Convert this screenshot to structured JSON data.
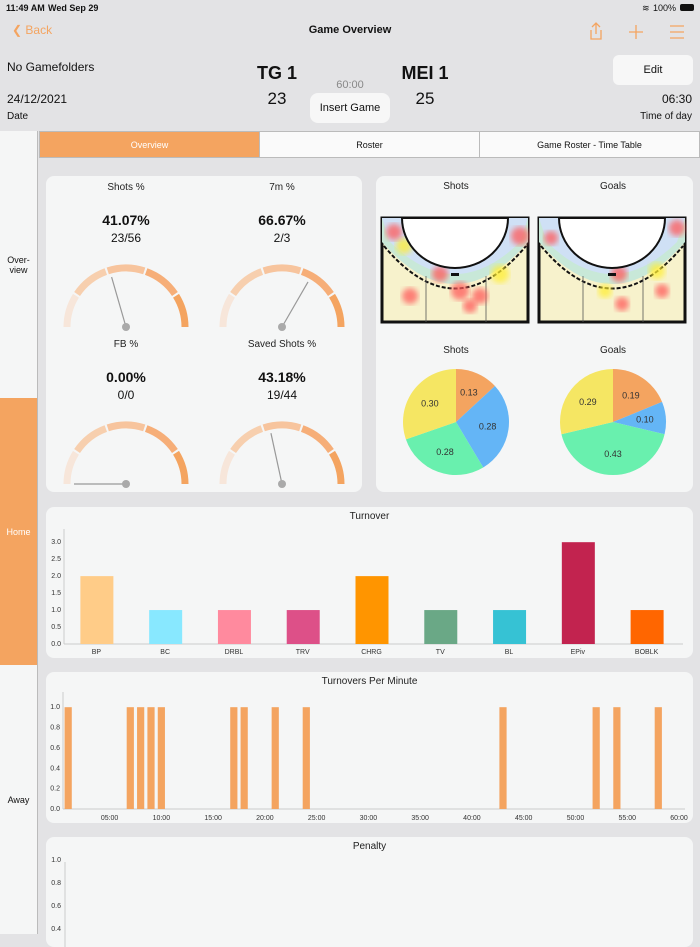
{
  "status": {
    "time": "11:49 AM",
    "date": "Wed Sep 29",
    "battery": "100%"
  },
  "nav": {
    "back": "Back",
    "title": "Game Overview",
    "icons": [
      "share-icon",
      "plus-icon",
      "menu-icon"
    ]
  },
  "game": {
    "folder": "No Gamefolders",
    "date": "24/12/2021",
    "date_label": "Date",
    "home_team": "TG 1",
    "home_score": "23",
    "away_team": "MEI 1",
    "away_score": "25",
    "clock": "60:00",
    "insert_button": "Insert Game",
    "edit_button": "Edit",
    "time": "06:30",
    "time_label": "Time of day"
  },
  "tabs": [
    "Overview",
    "Roster",
    "Game Roster - Time Table"
  ],
  "sidebar": [
    "Over-view",
    "Home",
    "Away"
  ],
  "gauges": [
    {
      "title": "Shots %",
      "value": "41.07%",
      "ratio": "23/56",
      "percent": 41.07
    },
    {
      "title": "7m %",
      "value": "66.67%",
      "ratio": "2/3",
      "percent": 66.67
    },
    {
      "title": "FB %",
      "value": "0.00%",
      "ratio": "0/0",
      "percent": 0
    },
    {
      "title": "Saved Shots %",
      "value": "43.18%",
      "ratio": "19/44",
      "percent": 43.18
    }
  ],
  "heatmaps": {
    "shots_title": "Shots",
    "goals_title": "Goals"
  },
  "colors": {
    "accent": "#f4a460",
    "pie": [
      "#f4a460",
      "#64b5f6",
      "#69f0ae",
      "#f5e663"
    ]
  },
  "chart_data": [
    {
      "type": "pie",
      "title": "Shots",
      "values": [
        0.13,
        0.28,
        0.28,
        0.3
      ]
    },
    {
      "type": "pie",
      "title": "Goals",
      "values": [
        0.19,
        0.1,
        0.43,
        0.29
      ]
    },
    {
      "type": "bar",
      "title": "Turnover",
      "categories": [
        "BP",
        "BC",
        "DRBL",
        "TRV",
        "CHRG",
        "TV",
        "BL",
        "EPiv",
        "BOBLK"
      ],
      "values": [
        2,
        1,
        1,
        1,
        2,
        1,
        1,
        3,
        1
      ],
      "colors": [
        "#ffcc88",
        "#88e8ff",
        "#ff8a9e",
        "#dd5088",
        "#ff9500",
        "#6aa886",
        "#36c2d4",
        "#c2234f",
        "#ff6600"
      ],
      "ylim": [
        0,
        3.3
      ],
      "yticks": [
        "0.0",
        "0.5",
        "1.0",
        "1.5",
        "2.0",
        "2.5",
        "3.0"
      ]
    },
    {
      "type": "bar",
      "title": "Turnovers Per Minute",
      "x": [
        1,
        7,
        8,
        9,
        10,
        17,
        18,
        21,
        24,
        43,
        52,
        54,
        58
      ],
      "values": [
        1,
        1,
        1,
        1,
        1,
        1,
        1,
        1,
        1,
        1,
        1,
        1,
        1
      ],
      "xlim": [
        0.5,
        60
      ],
      "ylim": [
        0,
        1.1
      ],
      "xticks": [
        "05:00",
        "10:00",
        "15:00",
        "20:00",
        "25:00",
        "30:00",
        "35:00",
        "40:00",
        "45:00",
        "50:00",
        "55:00",
        "60:00"
      ],
      "yticks": [
        "0.0",
        "0.2",
        "0.4",
        "0.6",
        "0.8",
        "1.0"
      ]
    },
    {
      "type": "bar",
      "title": "Penalty",
      "yticks": [
        "1.0",
        "0.8",
        "0.6",
        "0.4"
      ],
      "values": []
    }
  ]
}
